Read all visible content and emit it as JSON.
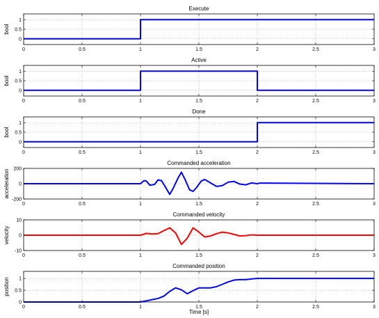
{
  "chart_data": [
    {
      "type": "line",
      "title": "Execute",
      "xlabel": "",
      "ylabel": "bool",
      "xlim": [
        0,
        3
      ],
      "ylim": [
        -0.3,
        1.3
      ],
      "xticks": [
        "0",
        "0.5",
        "1",
        "1.5",
        "2",
        "2.5",
        "3"
      ],
      "yticks": [
        "0",
        "0.5",
        "1"
      ],
      "grid": true,
      "series": [
        {
          "color": "#0000ff",
          "x": [
            0,
            1,
            1,
            3
          ],
          "y": [
            0,
            0,
            1,
            1
          ]
        }
      ]
    },
    {
      "type": "line",
      "title": "Active",
      "xlabel": "",
      "ylabel": "bool",
      "xlim": [
        0,
        3
      ],
      "ylim": [
        -0.3,
        1.3
      ],
      "xticks": [
        "0",
        "0.5",
        "1",
        "1.5",
        "2",
        "2.5",
        "3"
      ],
      "yticks": [
        "0",
        "0.5",
        "1"
      ],
      "grid": true,
      "series": [
        {
          "color": "#0000ff",
          "x": [
            0,
            1,
            1,
            2,
            2,
            3
          ],
          "y": [
            0,
            0,
            1,
            1,
            0,
            0
          ]
        }
      ]
    },
    {
      "type": "line",
      "title": "Done",
      "xlabel": "",
      "ylabel": "bool",
      "xlim": [
        0,
        3
      ],
      "ylim": [
        -0.3,
        1.3
      ],
      "xticks": [
        "0",
        "0.5",
        "1",
        "1.5",
        "2",
        "2.5",
        "3"
      ],
      "yticks": [
        "0",
        "0.5",
        "1"
      ],
      "grid": true,
      "series": [
        {
          "color": "#0000ff",
          "x": [
            0,
            2,
            2,
            3
          ],
          "y": [
            0,
            0,
            1,
            1
          ]
        }
      ]
    },
    {
      "type": "line",
      "title": "Commanded acceleration",
      "xlabel": "",
      "ylabel": "acceleration",
      "xlim": [
        0,
        3
      ],
      "ylim": [
        -200,
        200
      ],
      "xticks": [
        "0",
        "0.5",
        "1",
        "1.5",
        "2",
        "2.5",
        "3"
      ],
      "yticks": [
        "-200",
        "0",
        "200"
      ],
      "grid": true,
      "series": [
        {
          "color": "#0000ff",
          "x": [
            0,
            1.0,
            1.03,
            1.05,
            1.08,
            1.12,
            1.15,
            1.18,
            1.22,
            1.25,
            1.28,
            1.32,
            1.35,
            1.38,
            1.42,
            1.45,
            1.48,
            1.52,
            1.55,
            1.6,
            1.65,
            1.7,
            1.75,
            1.8,
            1.85,
            1.9,
            1.95,
            2.0,
            2.02,
            3
          ],
          "y": [
            0,
            0,
            40,
            35,
            -20,
            -10,
            50,
            40,
            -60,
            -140,
            -60,
            70,
            150,
            60,
            -80,
            -100,
            -50,
            35,
            55,
            10,
            -35,
            -25,
            20,
            30,
            -5,
            -15,
            10,
            0,
            8,
            0
          ]
        }
      ]
    },
    {
      "type": "line",
      "title": "Commanded velocity",
      "xlabel": "",
      "ylabel": "velocity",
      "xlim": [
        0,
        3
      ],
      "ylim": [
        -10,
        10
      ],
      "xticks": [
        "0",
        "0.5",
        "1",
        "1.5",
        "2",
        "2.5",
        "3"
      ],
      "yticks": [
        "-10",
        "0",
        "10"
      ],
      "grid": true,
      "series": [
        {
          "color": "#ff0000",
          "x": [
            0,
            1.0,
            1.05,
            1.1,
            1.15,
            1.2,
            1.25,
            1.3,
            1.35,
            1.4,
            1.45,
            1.5,
            1.55,
            1.6,
            1.65,
            1.7,
            1.75,
            1.8,
            1.85,
            1.9,
            1.95,
            2.0,
            3
          ],
          "y": [
            0,
            0,
            1.2,
            0.8,
            1.0,
            3.0,
            4.8,
            1.5,
            -6.0,
            -2.0,
            4.8,
            2.0,
            -1.2,
            -0.5,
            1.0,
            2.0,
            1.5,
            0.5,
            -0.5,
            -0.3,
            0.2,
            0,
            0
          ]
        }
      ]
    },
    {
      "type": "line",
      "title": "Commanded position",
      "xlabel": "Time [s]",
      "ylabel": "position",
      "xlim": [
        0,
        3
      ],
      "ylim": [
        0,
        1.3
      ],
      "xticks": [
        "0",
        "0.5",
        "1",
        "1.5",
        "2",
        "2.5",
        "3"
      ],
      "yticks": [
        "0",
        "0.5",
        "1"
      ],
      "grid": true,
      "series": [
        {
          "color": "#0000ff",
          "x": [
            0,
            1.0,
            1.05,
            1.1,
            1.15,
            1.2,
            1.25,
            1.3,
            1.35,
            1.4,
            1.45,
            1.5,
            1.55,
            1.6,
            1.65,
            1.7,
            1.75,
            1.8,
            1.85,
            1.9,
            1.95,
            2.0,
            3
          ],
          "y": [
            0,
            0,
            0.05,
            0.1,
            0.15,
            0.25,
            0.45,
            0.6,
            0.52,
            0.35,
            0.48,
            0.6,
            0.6,
            0.6,
            0.65,
            0.75,
            0.85,
            0.93,
            0.95,
            0.95,
            0.98,
            1.0,
            1.0
          ]
        }
      ]
    }
  ]
}
